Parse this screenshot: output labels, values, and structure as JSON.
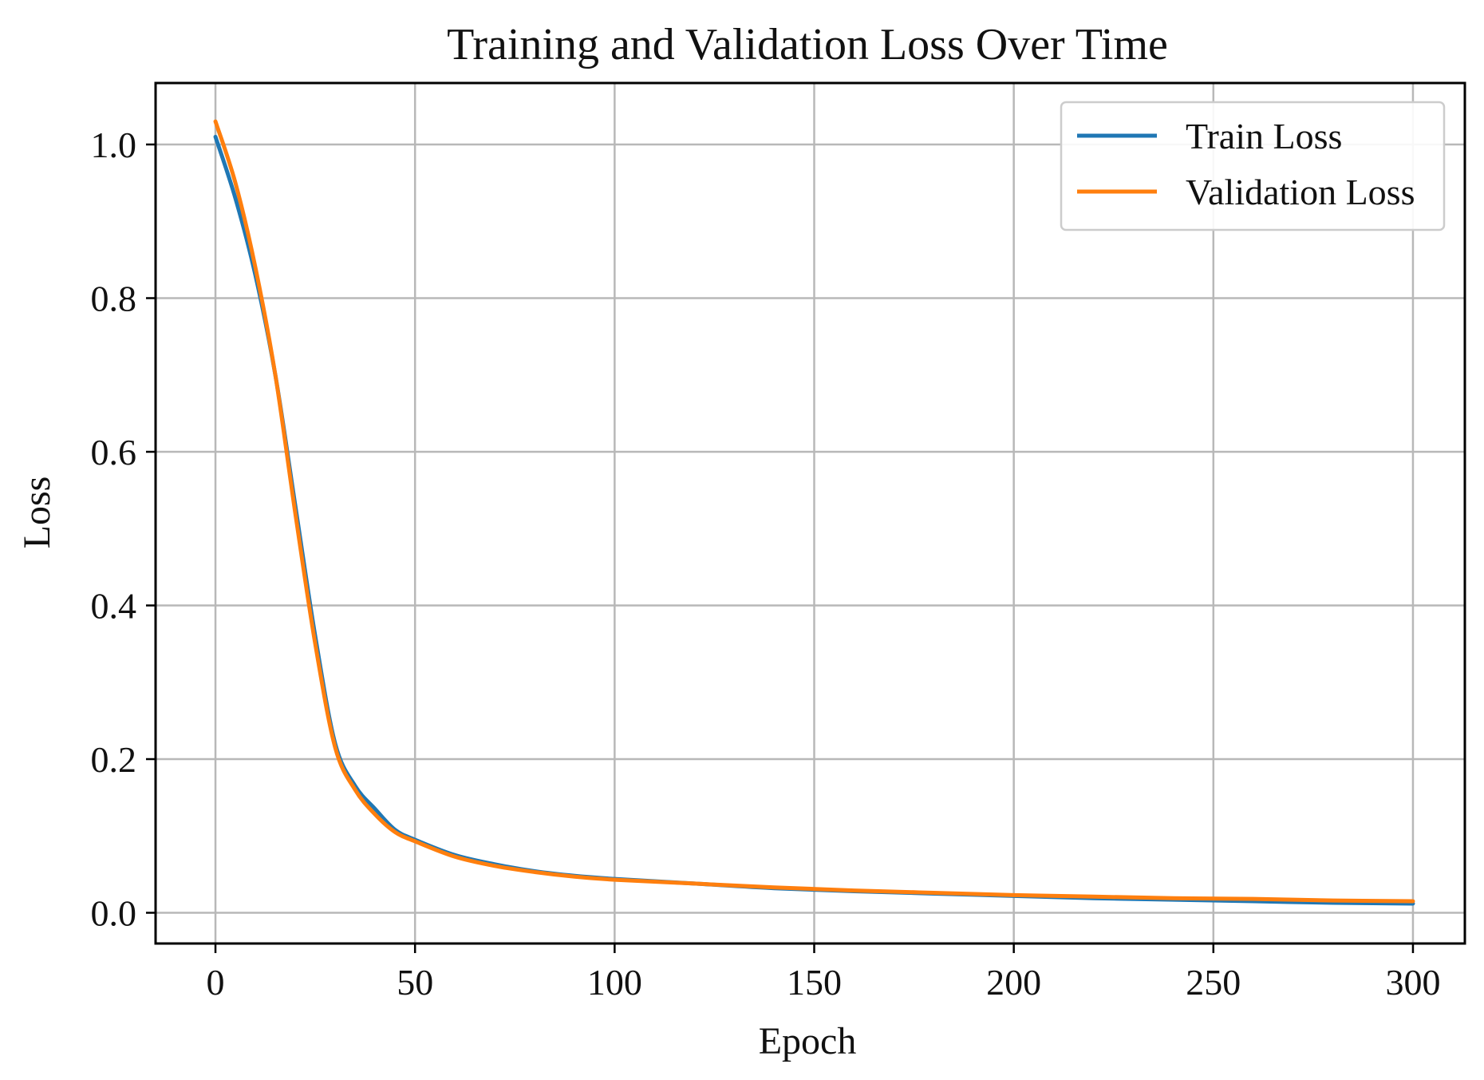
{
  "chart_data": {
    "type": "line",
    "title": "Training and Validation Loss Over Time",
    "xlabel": "Epoch",
    "ylabel": "Loss",
    "xlim": [
      -15,
      313
    ],
    "ylim": [
      -0.04,
      1.08
    ],
    "xticks": [
      0,
      50,
      100,
      150,
      200,
      250,
      300
    ],
    "yticks": [
      0.0,
      0.2,
      0.4,
      0.6,
      0.8,
      1.0
    ],
    "xtick_labels": [
      "0",
      "50",
      "100",
      "150",
      "200",
      "250",
      "300"
    ],
    "ytick_labels": [
      "0.0",
      "0.2",
      "0.4",
      "0.6",
      "0.8",
      "1.0"
    ],
    "grid": true,
    "legend_position": "top-right",
    "series": [
      {
        "name": "Train Loss",
        "color": "#1f77b4",
        "x": [
          0,
          5,
          10,
          15,
          20,
          25,
          30,
          35,
          40,
          45,
          50,
          60,
          70,
          80,
          90,
          100,
          120,
          140,
          160,
          180,
          200,
          220,
          240,
          260,
          280,
          300
        ],
        "y": [
          1.01,
          0.93,
          0.83,
          0.7,
          0.53,
          0.36,
          0.22,
          0.165,
          0.135,
          0.108,
          0.095,
          0.075,
          0.063,
          0.054,
          0.048,
          0.044,
          0.038,
          0.032,
          0.028,
          0.025,
          0.022,
          0.019,
          0.017,
          0.015,
          0.013,
          0.012
        ]
      },
      {
        "name": "Validation Loss",
        "color": "#ff7f0e",
        "x": [
          0,
          5,
          10,
          15,
          20,
          25,
          30,
          35,
          40,
          45,
          50,
          60,
          70,
          80,
          90,
          100,
          120,
          140,
          160,
          180,
          200,
          220,
          240,
          260,
          280,
          300
        ],
        "y": [
          1.03,
          0.95,
          0.84,
          0.7,
          0.52,
          0.35,
          0.215,
          0.16,
          0.128,
          0.105,
          0.093,
          0.073,
          0.061,
          0.053,
          0.047,
          0.043,
          0.038,
          0.033,
          0.029,
          0.026,
          0.023,
          0.021,
          0.019,
          0.018,
          0.016,
          0.015
        ]
      }
    ]
  }
}
